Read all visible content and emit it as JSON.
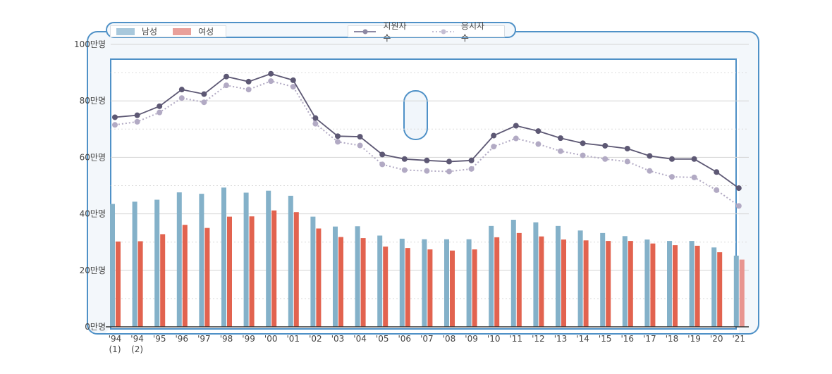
{
  "legend": {
    "male": "남성",
    "female": "여성",
    "applicants": "지원자 수",
    "examinees": "응시자 수"
  },
  "colors": {
    "male": "#84b1c9",
    "female": "#e2634f",
    "female_last": "#e89590",
    "applicants": "#5d5874",
    "examinees": "#b2aac4",
    "frame": "#4f91c7"
  },
  "chart_data": {
    "type": "bar+line",
    "categories": [
      "'94\n(1)",
      "'94\n(2)",
      "'95",
      "'96",
      "'97",
      "'98",
      "'99",
      "'00",
      "'01",
      "'02",
      "'03",
      "'04",
      "'05",
      "'06",
      "'07",
      "'08",
      "'09",
      "'10",
      "'11",
      "'12",
      "'13",
      "'14",
      "'15",
      "'16",
      "'17",
      "'18",
      "'19",
      "'20",
      "'21"
    ],
    "yticks": [
      "0만명",
      "20만명",
      "40만명",
      "60만명",
      "80만명",
      "100만명"
    ],
    "ylim": [
      0,
      100
    ],
    "series": [
      {
        "name": "남성",
        "kind": "bar",
        "values": [
          43.5,
          44.3,
          45.0,
          47.6,
          47.1,
          49.3,
          47.5,
          48.2,
          46.4,
          39.0,
          35.5,
          35.6,
          32.3,
          31.2,
          31.0,
          31.0,
          31.0,
          35.7,
          37.9,
          37.0,
          35.7,
          34.1,
          33.2,
          32.1,
          30.9,
          30.4,
          30.4,
          28.1,
          25.2
        ]
      },
      {
        "name": "여성",
        "kind": "bar",
        "values": [
          30.2,
          30.3,
          32.8,
          36.1,
          35.0,
          39.0,
          39.1,
          41.2,
          40.6,
          34.8,
          31.8,
          31.4,
          28.4,
          27.9,
          27.4,
          27.0,
          27.4,
          31.7,
          33.2,
          32.0,
          30.9,
          30.6,
          30.4,
          30.4,
          29.5,
          28.9,
          28.7,
          26.4,
          23.8
        ]
      },
      {
        "name": "지원자 수",
        "kind": "line",
        "values": [
          74.2,
          74.9,
          78.1,
          84.0,
          82.4,
          88.6,
          86.8,
          89.6,
          87.3,
          73.9,
          67.5,
          67.3,
          61.0,
          59.4,
          58.9,
          58.5,
          58.9,
          67.7,
          71.2,
          69.3,
          66.8,
          65.0,
          64.1,
          63.1,
          60.5,
          59.4,
          59.4,
          54.8,
          49.1
        ]
      },
      {
        "name": "응시자 수",
        "kind": "line",
        "style": "dotted",
        "values": [
          71.5,
          72.6,
          75.9,
          81.0,
          79.5,
          85.5,
          84.0,
          87.0,
          85.0,
          71.9,
          65.5,
          64.2,
          57.5,
          55.5,
          55.2,
          55.0,
          55.9,
          63.8,
          66.7,
          64.7,
          62.2,
          60.7,
          59.4,
          58.5,
          55.2,
          53.1,
          52.9,
          48.4,
          42.8
        ]
      }
    ]
  }
}
